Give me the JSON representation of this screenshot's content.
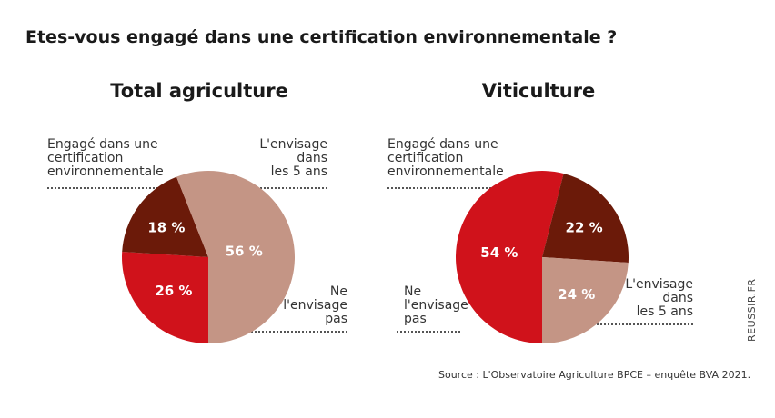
{
  "title": "Etes-vous engagé dans une certification environnementale ?",
  "source": "Source : L'Observatoire Agriculture BPCE – enquête BVA 2021.",
  "credit": "REUSSIR.FR",
  "colors": {
    "engage": "#d0121b",
    "envisage": "#6b1a09",
    "ne_envisage_pas": "#c49585",
    "label_light": "#ffffff"
  },
  "chart_data": [
    {
      "type": "pie",
      "title": "Total agriculture",
      "slices": [
        {
          "label": "Engagé dans une certification environnementale",
          "value": 26,
          "value_label": "26 %",
          "color": "#d0121b"
        },
        {
          "label": "L'envisage dans les 5 ans",
          "value": 18,
          "value_label": "18 %",
          "color": "#6b1a09"
        },
        {
          "label": "Ne l'envisage pas",
          "value": 56,
          "value_label": "56 %",
          "color": "#c49585"
        }
      ]
    },
    {
      "type": "pie",
      "title": "Viticulture",
      "slices": [
        {
          "label": "Engagé dans une certification environnementale",
          "value": 54,
          "value_label": "54 %",
          "color": "#d0121b"
        },
        {
          "label": "L'envisage dans les 5 ans",
          "value": 22,
          "value_label": "22 %",
          "color": "#6b1a09"
        },
        {
          "label": "Ne l'envisage pas",
          "value": 24,
          "value_label": "24 %",
          "color": "#c49585"
        }
      ]
    }
  ],
  "labels": {
    "c1": {
      "engage": "Engagé dans une\ncertification\nenvironnementale",
      "envisage": "L'envisage\ndans\nles 5 ans",
      "ne_pas": "Ne\nl'envisage\npas"
    },
    "c2": {
      "engage": "Engagé dans une\ncertification\nenvironnementale",
      "envisage": "L'envisage\ndans\nles 5 ans",
      "ne_pas": "Ne\nl'envisage\npas"
    }
  }
}
